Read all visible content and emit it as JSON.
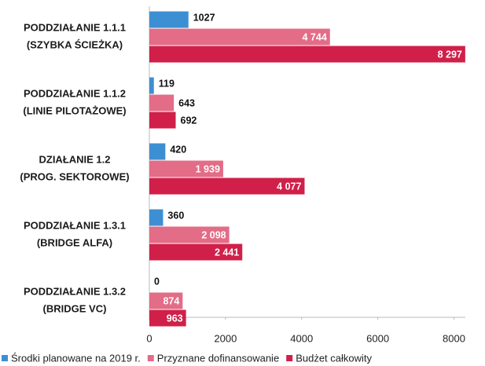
{
  "chart_data": {
    "type": "bar",
    "orientation": "horizontal",
    "categories": [
      [
        "PODDZIAŁANIE 1.1.1",
        "(SZYBKA ŚCIEŻKA)"
      ],
      [
        "PODDZIAŁANIE 1.1.2",
        "(LINIE PILOTAŻOWE)"
      ],
      [
        "DZIAŁANIE 1.2",
        "(PROG. SEKTOROWE)"
      ],
      [
        "PODDZIAŁANIE 1.3.1",
        "(BRIDGE ALFA)"
      ],
      [
        "PODDZIAŁANIE 1.3.2",
        "(BRIDGE VC)"
      ]
    ],
    "series": [
      {
        "name": "Środki planowane na 2019 r.",
        "color": "#3d8fd3",
        "values": [
          1027,
          119,
          420,
          360,
          0
        ],
        "value_labels": [
          "1027",
          "119",
          "420",
          "360",
          "0"
        ]
      },
      {
        "name": "Przyznane dofinansowanie",
        "color": "#e36c87",
        "values": [
          4744,
          643,
          1939,
          2098,
          874
        ],
        "value_labels": [
          "4 744",
          "643",
          "1 939",
          "2 098",
          "874"
        ]
      },
      {
        "name": "Budżet całkowity",
        "color": "#d0204a",
        "values": [
          8297,
          692,
          4077,
          2441,
          963
        ],
        "value_labels": [
          "8 297",
          "692",
          "4 077",
          "2 441",
          "963"
        ]
      }
    ],
    "xlim": [
      0,
      8300
    ],
    "xticks": [
      0,
      2000,
      4000,
      6000,
      8000
    ],
    "legend": "bottom"
  }
}
